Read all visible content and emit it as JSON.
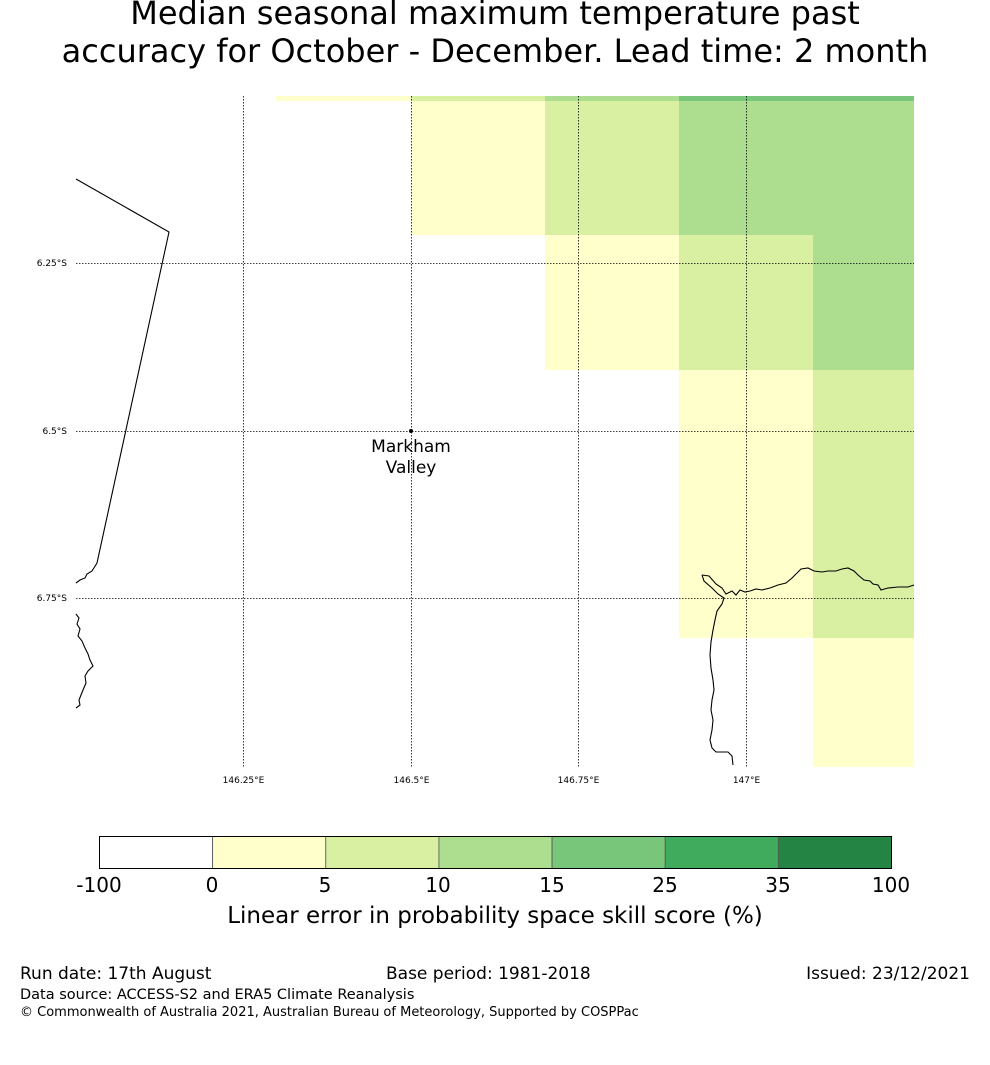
{
  "title_line1": "Median seasonal maximum temperature past",
  "title_line2": "accuracy for October - December. Lead time: 2 month",
  "map": {
    "lon_labels": [
      "146.25°E",
      "146.5°E",
      "146.75°E",
      "147°E"
    ],
    "lat_labels": [
      "6.25°S",
      "6.5°S",
      "6.75°S"
    ],
    "place_name_line1": "Markham",
    "place_name_line2": "Valley",
    "colors": {
      "bin_0_5": "#ffffcc",
      "bin_5_10": "#d9f0a3",
      "bin_10_15": "#addd8e",
      "bin_15_25": "#78c679"
    }
  },
  "colorbar": {
    "ticks": [
      "-100",
      "0",
      "5",
      "10",
      "15",
      "25",
      "35",
      "100"
    ],
    "colors": [
      "#ffffff",
      "#ffffcc",
      "#d9f0a3",
      "#addd8e",
      "#78c679",
      "#41ab5d",
      "#238443"
    ],
    "label": "Linear error in probability space skill score (%)"
  },
  "footer": {
    "run_date": "Run date: 17th August",
    "base_period": "Base period: 1981-2018",
    "issued": "Issued: 23/12/2021",
    "data_source": "Data source: ACCESS-S2 and ERA5 Climate Reanalysis",
    "copyright": "© Commonwealth of Australia 2021, Australian Bureau of Meteorology, Supported by COSPPac"
  }
}
